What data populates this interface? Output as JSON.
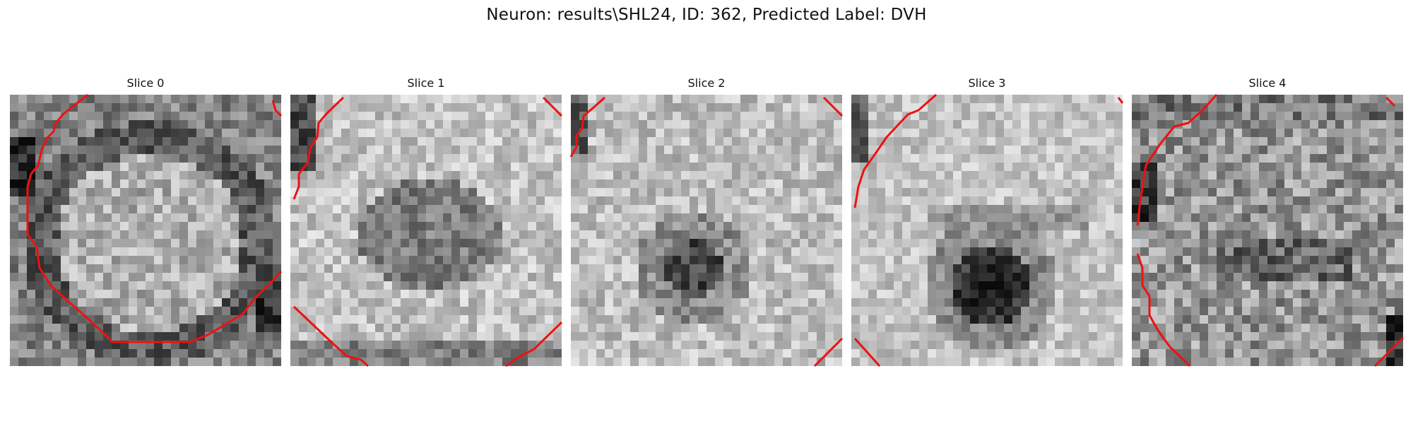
{
  "figure": {
    "title": "Neuron: results\\SHL24, ID: 362, Predicted Label: DVH"
  },
  "colors": {
    "contour": "#ee1111",
    "colormap": "gray"
  },
  "panels": [
    {
      "label": "Slice 0"
    },
    {
      "label": "Slice 1"
    },
    {
      "label": "Slice 2"
    },
    {
      "label": "Slice 3"
    },
    {
      "label": "Slice 4"
    }
  ]
}
